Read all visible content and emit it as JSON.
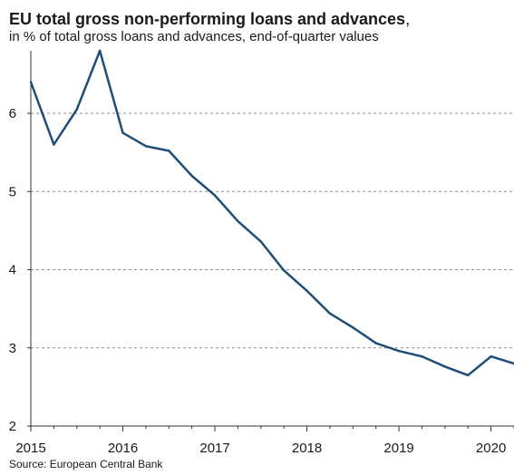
{
  "title": {
    "main": "EU total gross non-performing loans and advances",
    "suffix": ",",
    "subtitle": "in % of total gross loans and advances,  end-of-quarter  values"
  },
  "source": "Source: European Central Bank",
  "colors": {
    "line": "#1f4e79",
    "grid": "#8c8c8c",
    "axis": "#333333"
  },
  "chart_data": {
    "type": "line",
    "title": "EU total gross non-performing loans and advances",
    "subtitle": "in % of total gross loans and advances,  end-of-quarter  values",
    "xlabel": "",
    "ylabel": "",
    "xlim": [
      2015,
      2020.25
    ],
    "ylim": [
      2,
      6.8
    ],
    "y_ticks": [
      2,
      3,
      4,
      5,
      6
    ],
    "y_tick_labels": [
      "2",
      "3",
      "4",
      "5",
      "6"
    ],
    "x_ticks": [
      2015,
      2016,
      2017,
      2018,
      2019,
      2020
    ],
    "x_tick_labels": [
      "2015",
      "2016",
      "2017",
      "2018",
      "2019",
      "2020"
    ],
    "grid": "horizontal dashed",
    "series": [
      {
        "x": [
          2015.0,
          2015.25,
          2015.5,
          2015.75,
          2016.0,
          2016.25,
          2016.5,
          2016.75,
          2017.0,
          2017.25,
          2017.5,
          2017.75,
          2018.0,
          2018.25,
          2018.5,
          2018.75,
          2019.0,
          2019.25,
          2019.5,
          2019.75,
          2020.0,
          2020.25
        ],
        "values": [
          6.4,
          5.6,
          6.05,
          6.8,
          5.75,
          5.58,
          5.52,
          5.2,
          4.95,
          4.62,
          4.36,
          3.99,
          3.73,
          3.44,
          3.26,
          3.06,
          2.96,
          2.89,
          2.76,
          2.65,
          2.89,
          2.8
        ]
      }
    ]
  }
}
